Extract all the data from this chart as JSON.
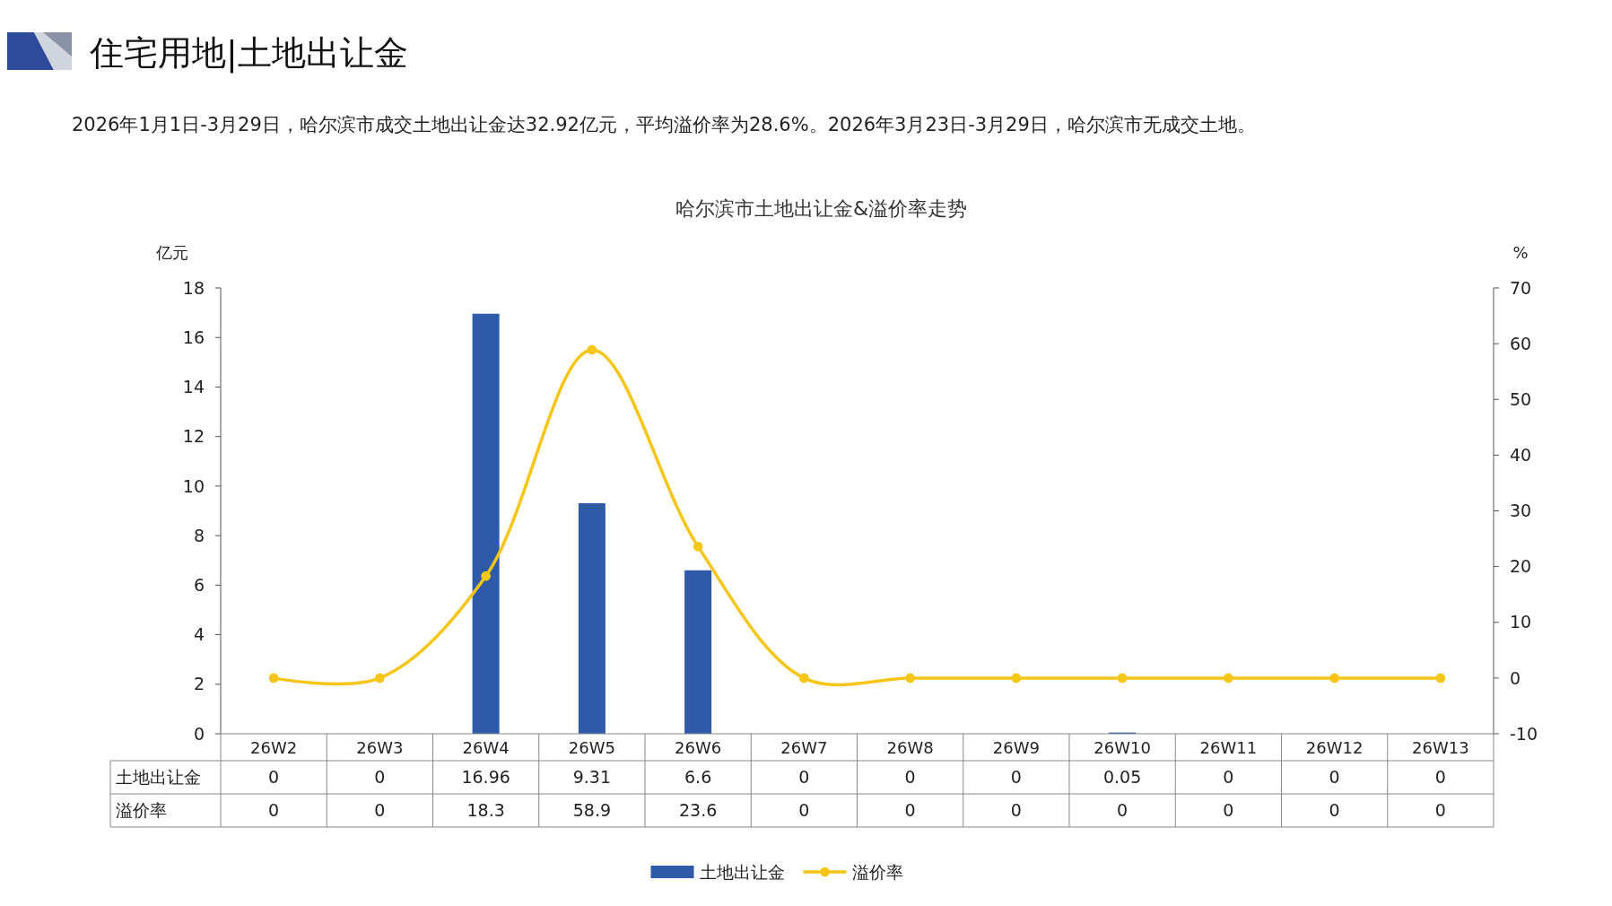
{
  "chart_data": {
    "type": "bar",
    "title": "哈尔滨市土地出让金&溢价率走势",
    "subtitle": "2026年1月1日-3月29日，哈尔滨市成交土地出让金达32.92亿元，平均溢价率为28.6%。2026年3月23日-3月29日，哈尔滨市无成交土地。",
    "annotations": [
      "住宅用地|土地出让金"
    ],
    "ylabel": "亿元",
    "y2label": "%",
    "categories": [
      "26W2",
      "26W3",
      "26W4",
      "26W5",
      "26W6",
      "26W7",
      "26W8",
      "26W9",
      "26W10",
      "26W11",
      "26W12",
      "26W13"
    ],
    "series": [
      {
        "name": "土地出让金",
        "color": "#2e5aa8",
        "values": [
          0,
          0,
          16.96,
          9.31,
          6.6,
          0,
          0,
          0,
          0.05,
          0,
          0,
          0
        ]
      },
      {
        "name": "溢价率",
        "type": "line",
        "axis": "y2",
        "color": "#f5c518",
        "values": [
          0,
          0,
          18.3,
          58.9,
          23.6,
          0,
          0,
          0,
          0,
          0,
          0,
          0
        ]
      }
    ],
    "ylim": [
      0,
      18
    ],
    "yticks": [
      0,
      2,
      4,
      6,
      8,
      10,
      12,
      14,
      16,
      18
    ],
    "y2lim": [
      -10,
      70
    ],
    "y2ticks": [
      -10,
      0,
      10,
      20,
      30,
      40,
      50,
      60,
      70
    ],
    "data_labels": true,
    "legend": "bottom",
    "marker": "circle",
    "grid": false
  }
}
